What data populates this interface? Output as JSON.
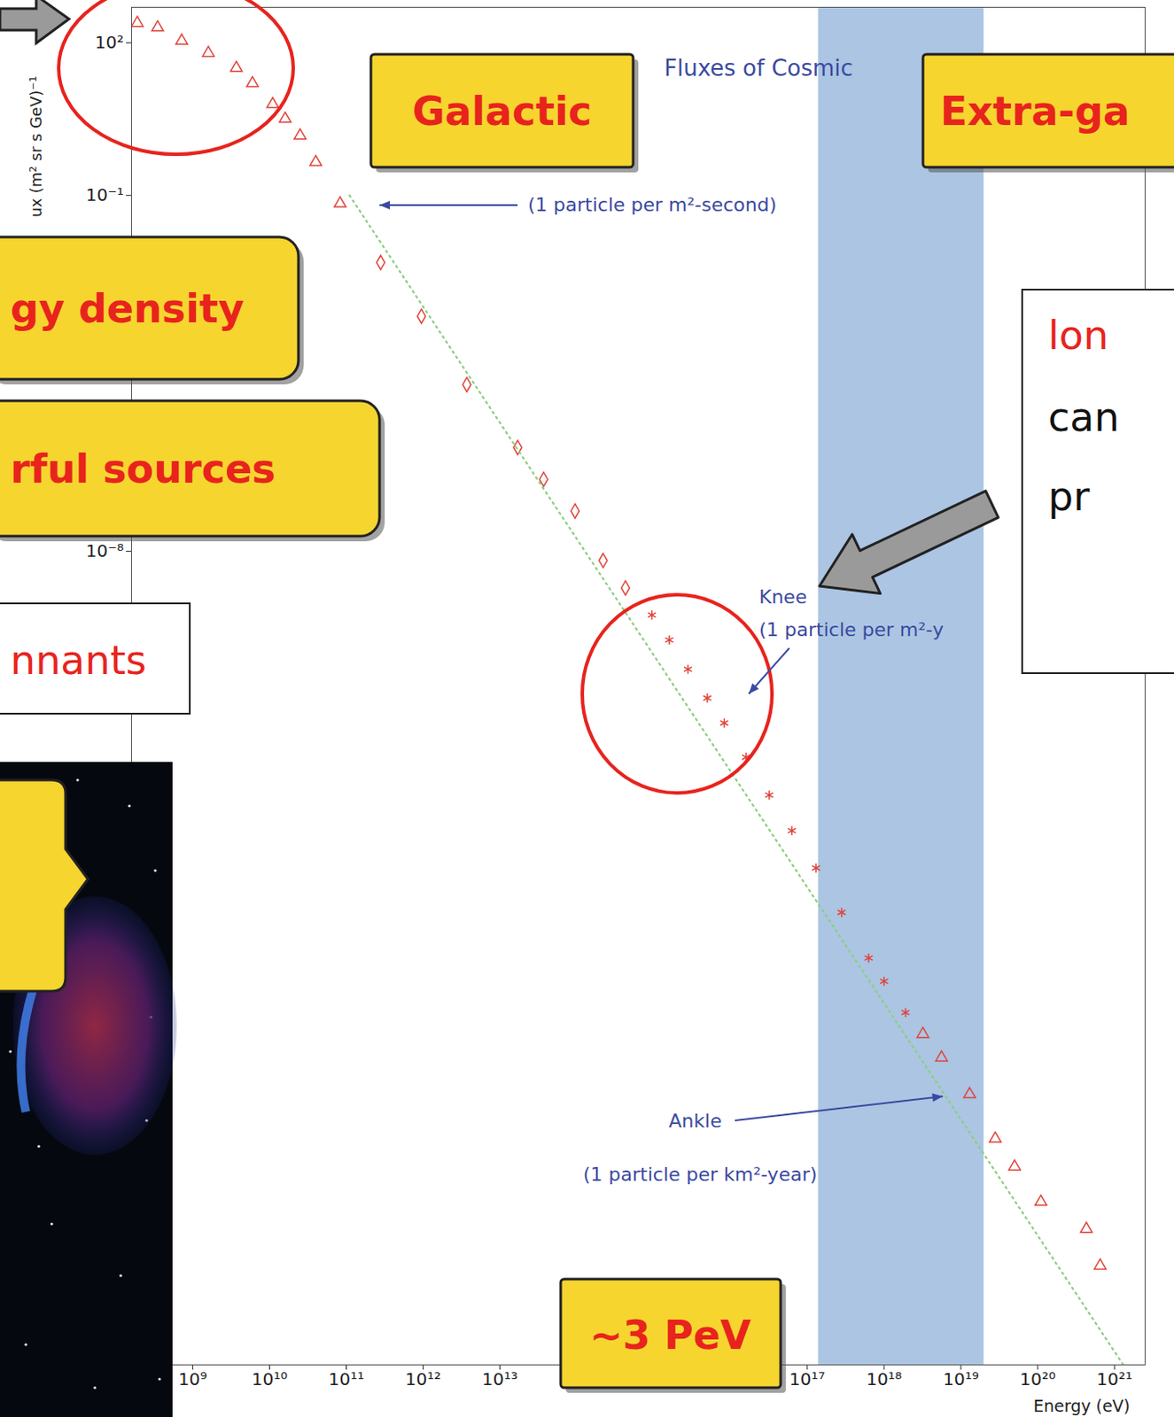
{
  "chart_data": {
    "type": "scatter",
    "title": "Fluxes of Cosmic",
    "x_label": "Energy (eV)",
    "y_label": "ux (m² sr s GeV)⁻¹",
    "log": true,
    "grid": false,
    "xlim": [
      160000000.0,
      2.5e+21
    ],
    "ylim": [
      1e-24,
      500
    ],
    "xticks": [
      {
        "value": 1000000000.0,
        "label": "10⁹"
      },
      {
        "value": 10000000000.0,
        "label": "10¹⁰"
      },
      {
        "value": 100000000000.0,
        "label": "10¹¹"
      },
      {
        "value": 1000000000000.0,
        "label": "10¹²"
      },
      {
        "value": 10000000000000.0,
        "label": "10¹³"
      },
      {
        "value": 1e+17,
        "label": "10¹⁷"
      },
      {
        "value": 1e+18,
        "label": "10¹⁸"
      },
      {
        "value": 1e+19,
        "label": "10¹⁹"
      },
      {
        "value": 1e+20,
        "label": "10²⁰"
      },
      {
        "value": 1e+21,
        "label": "10²¹"
      }
    ],
    "yticks": [
      {
        "value": 100,
        "label": "10²"
      },
      {
        "value": 0.1,
        "label": "10⁻¹"
      },
      {
        "value": 1e-08,
        "label": "10⁻⁸"
      }
    ],
    "series": [
      {
        "type": "scatter",
        "marker": "triangle",
        "color": "#e0443a",
        "x": [
          190000000.0,
          350000000.0,
          720000000.0,
          1600000000.0,
          3700000000.0,
          6000000000.0,
          11000000000.0,
          16000000000.0,
          25000000000.0,
          40000000000.0,
          83000000000.0
        ],
        "values": [
          245,
          200,
          110,
          63,
          32,
          16,
          6.2,
          3.2,
          1.5,
          0.45,
          0.069
        ]
      },
      {
        "type": "scatter",
        "marker": "diamond",
        "color": "#e0443a",
        "x": [
          280000000000.0,
          950000000000.0,
          3700000000000.0,
          17000000000000.0,
          37000000000000.0,
          95000000000000.0,
          220000000000000.0,
          430000000000000.0
        ],
        "values": [
          0.0048,
          0.00042,
          1.9e-05,
          1.1e-06,
          2.6e-07,
          6.2e-08,
          6.6e-09,
          1.9e-09
        ]
      },
      {
        "type": "scatter",
        "marker": "asterisk",
        "color": "#e0443a",
        "x": [
          950000000000000.0,
          1600000000000000.0,
          2800000000000000.0,
          5000000000000000.0,
          8300000000000000.0,
          1.6e+16,
          3.2e+16,
          6.3e+16,
          1.3e+17,
          2.8e+17,
          6.3e+17,
          1e+18,
          1.9e+18
        ],
        "values": [
          5.6e-10,
          1.8e-10,
          4.8e-11,
          1.3e-11,
          4.2e-12,
          8.9e-13,
          1.6e-13,
          3.2e-14,
          5.9e-15,
          7.9e-16,
          1e-16,
          3.5e-17,
          8.5e-18
        ]
      },
      {
        "type": "scatter",
        "marker": "triangle",
        "color": "#e0443a",
        "x": [
          3.2e+18,
          5.6e+18,
          1.3e+19,
          2.8e+19,
          5e+19,
          1.1e+20,
          4.3e+20,
          6.5e+20
        ],
        "values": [
          3.2e-18,
          1.1e-18,
          2.1e-19,
          2.8e-20,
          7.9e-21,
          1.6e-21,
          4.7e-22,
          8.9e-23
        ]
      },
      {
        "type": "line",
        "line_style": "dotted",
        "color": "#8ccf7e",
        "x": [
          110000000000.0,
          1.3e+21
        ],
        "values": [
          0.1,
          1e-24
        ]
      }
    ],
    "highlight_band": {
      "x": [
        1.4e+17,
        2e+19
      ],
      "color": "#8fb2d9"
    },
    "annotations": [
      "(1 particle per m²-second)",
      "Knee",
      "(1 particle per m²-y",
      "Ankle",
      "(1 particle per km²-year)"
    ],
    "callouts": [
      "Galactic",
      "Extra-ga",
      "gy density",
      "rful sources",
      "nnants",
      "~3 PeV",
      "lon",
      "can",
      "pr"
    ]
  }
}
